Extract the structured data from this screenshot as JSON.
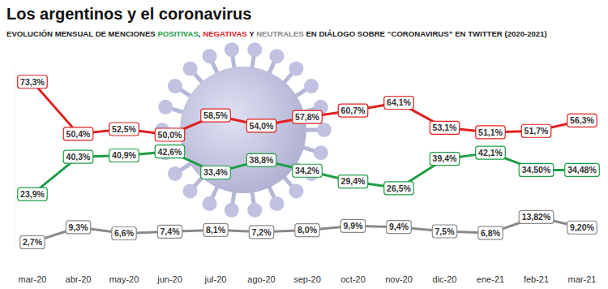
{
  "chart_data": {
    "type": "line",
    "title": "Los argentinos y el coronavirus",
    "subtitle": "EVOLUCIÓN MENSUAL DE MENCIONES POSITIVAS, NEGATIVAS Y NEUTRALES EN DIÁLOGO SOBRE “CORONAVIRUS” EN TWITTER (2020-2021)",
    "categories": [
      "mar-20",
      "abr-20",
      "may-20",
      "jun-20",
      "jul-20",
      "ago-20",
      "sep-20",
      "oct-20",
      "nov-20",
      "dic-20",
      "ene-21",
      "feb-21",
      "mar-21"
    ],
    "ylim": [
      0,
      80
    ],
    "tick_labels": "x",
    "grid": false,
    "data_labels": true,
    "series": [
      {
        "name": "POSITIVAS",
        "color": "#1e9e45",
        "marker": "circle",
        "line_style": "solid",
        "values": [
          23.9,
          40.3,
          40.9,
          42.6,
          33.4,
          38.8,
          34.2,
          29.4,
          26.5,
          39.4,
          42.1,
          34.5,
          34.48
        ],
        "value_labels": [
          "23,9%",
          "40,3%",
          "40,9%",
          "42,6%",
          "33,4%",
          "38,8%",
          "34,2%",
          "29,4%",
          "26,5%",
          "39,4%",
          "42,1%",
          "34,50%",
          "34,48%"
        ]
      },
      {
        "name": "NEGATIVAS",
        "color": "#e0201f",
        "marker": "circle",
        "line_style": "solid",
        "values": [
          73.3,
          50.4,
          52.5,
          50.0,
          58.5,
          54.0,
          57.8,
          60.7,
          64.1,
          53.1,
          51.1,
          51.7,
          56.3
        ],
        "value_labels": [
          "73,3%",
          "50,4%",
          "52,5%",
          "50,0%",
          "58,5%",
          "54,0%",
          "57,8%",
          "60,7%",
          "64,1%",
          "53,1%",
          "51,1%",
          "51,7%",
          "56,3%"
        ]
      },
      {
        "name": "NEUTRALES",
        "color": "#8a8a8a",
        "marker": "circle",
        "line_style": "solid",
        "values": [
          2.7,
          9.3,
          6.6,
          7.4,
          8.1,
          7.2,
          8.0,
          9.9,
          9.4,
          7.5,
          6.8,
          13.82,
          9.2
        ],
        "value_labels": [
          "2,7%",
          "9,3%",
          "6,6%",
          "7,4%",
          "8,1%",
          "7,2%",
          "8,0%",
          "9,9%",
          "9,4%",
          "7,5%",
          "6,8%",
          "13,82%",
          "9,20%"
        ]
      }
    ]
  }
}
